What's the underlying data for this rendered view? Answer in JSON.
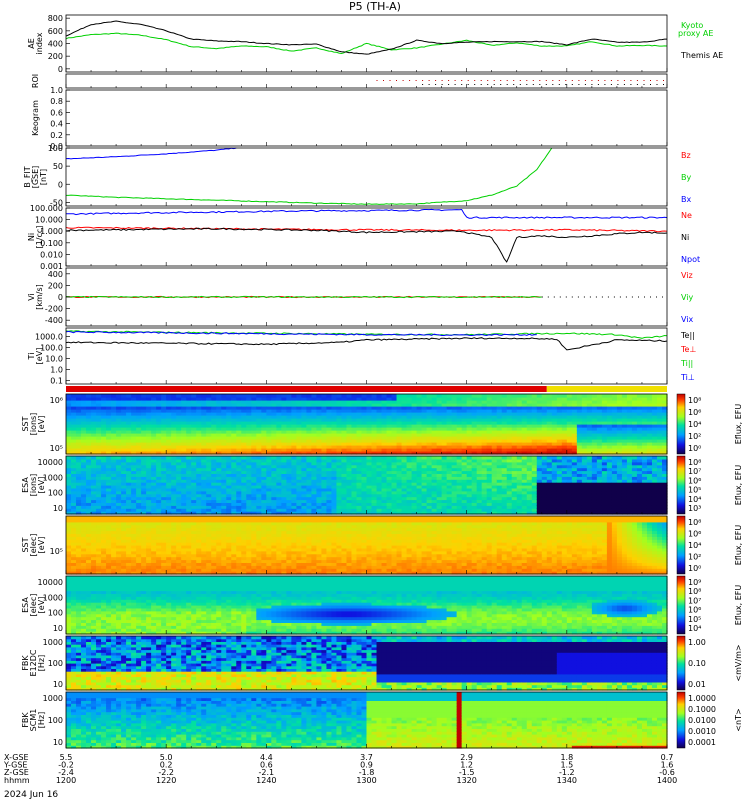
{
  "title": "P5 (TH-A)",
  "footer_date": "2024 Jun 16",
  "colors": {
    "red": "#ff0000",
    "green": "#00d000",
    "blue": "#0000ff",
    "black": "#000000"
  },
  "chart_data": {
    "type": "multi-panel",
    "x": {
      "label": "hhmm",
      "ticks": [
        "1200",
        "1220",
        "1240",
        "1300",
        "1320",
        "1340",
        "1400"
      ],
      "tick_minutes": [
        0,
        20,
        40,
        60,
        80,
        100,
        120
      ]
    },
    "position_rows": [
      {
        "label": "X-GSE",
        "values": [
          "5.5",
          "5.0",
          "4.4",
          "3.7",
          "2.9",
          "1.8",
          "0.7"
        ]
      },
      {
        "label": "Y-GSE",
        "values": [
          "-0.2",
          "0.2",
          "0.6",
          "0.9",
          "1.2",
          "1.5",
          "1.6"
        ]
      },
      {
        "label": "Z-GSE",
        "values": [
          "-2.4",
          "-2.2",
          "-2.1",
          "-1.8",
          "-1.5",
          "-1.2",
          "-0.6"
        ]
      }
    ],
    "panels": [
      {
        "id": "ae",
        "type": "line",
        "ylabel": "AE index",
        "yticks": [
          "800",
          "600",
          "400",
          "200",
          "0"
        ],
        "ylim": [
          -50,
          850
        ],
        "series": [
          {
            "name": "Kyoto proxy AE",
            "legend_line2": "proxy AE",
            "legend_line1": "Kyoto",
            "color": "green",
            "x": [
              0,
              5,
              10,
              15,
              20,
              25,
              30,
              35,
              40,
              45,
              50,
              55,
              60,
              65,
              70,
              75,
              80,
              85,
              90,
              95,
              100,
              105,
              110,
              115,
              120
            ],
            "y": [
              480,
              540,
              560,
              530,
              460,
              350,
              320,
              360,
              350,
              280,
              330,
              240,
              400,
              300,
              330,
              390,
              450,
              370,
              410,
              360,
              360,
              430,
              360,
              370,
              360
            ]
          },
          {
            "name": "Themis AE",
            "color": "black",
            "x": [
              0,
              5,
              10,
              15,
              20,
              25,
              30,
              35,
              40,
              45,
              50,
              55,
              60,
              65,
              70,
              75,
              80,
              85,
              90,
              95,
              100,
              105,
              110,
              115,
              120
            ],
            "y": [
              520,
              700,
              750,
              700,
              600,
              470,
              440,
              430,
              400,
              380,
              390,
              270,
              230,
              310,
              450,
              400,
              420,
              430,
              430,
              430,
              380,
              470,
              420,
              420,
              470
            ]
          }
        ]
      },
      {
        "id": "roi",
        "type": "dots",
        "ylabel": "ROI",
        "start_minute": 62
      },
      {
        "id": "keogram",
        "type": "empty",
        "ylabel": "Keogram",
        "yticks": [
          "1.0",
          "0.8",
          "0.6",
          "0.4",
          "0.2",
          "0.0"
        ],
        "ylim": [
          0,
          1
        ]
      },
      {
        "id": "bfit",
        "type": "line",
        "ylabel": "B_FIT [GSE] [nT]",
        "yticks": [
          "100",
          "50",
          "0",
          "-50"
        ],
        "ylim": [
          -60,
          100
        ],
        "legend": [
          "Bz",
          "By",
          "Bx"
        ],
        "legend_colors": [
          "red",
          "green",
          "blue"
        ],
        "series": [
          {
            "name": "Bx",
            "color": "blue",
            "x": [
              0,
              10,
              20,
              30,
              34
            ],
            "y": [
              70,
              76,
              84,
              94,
              100
            ]
          },
          {
            "name": "By",
            "color": "green",
            "x": [
              0,
              10,
              20,
              30,
              40,
              50,
              60,
              70,
              80,
              85,
              90,
              94,
              97
            ],
            "y": [
              -30,
              -36,
              -40,
              -44,
              -48,
              -52,
              -55,
              -54,
              -45,
              -30,
              -5,
              40,
              100
            ]
          }
        ]
      },
      {
        "id": "density",
        "type": "line",
        "scale": "log",
        "ylabel": "Ni [1/cc]",
        "yticks": [
          "100.000",
          "10.000",
          "1.000",
          "0.100",
          "0.010",
          "0.001"
        ],
        "ylim": [
          0.001,
          100
        ],
        "legend": [
          "Ne",
          "Ni",
          "Npot"
        ],
        "legend_colors": [
          "red",
          "black",
          "blue"
        ],
        "series": [
          {
            "name": "Npot",
            "color": "blue",
            "x": [
              0,
              15,
              30,
              45,
              60,
              70,
              79,
              80,
              120
            ],
            "y": [
              30,
              38,
              45,
              55,
              60,
              65,
              70,
              15,
              15
            ]
          },
          {
            "name": "Ne",
            "color": "red",
            "x": [
              0,
              20,
              40,
              60,
              80,
              100,
              120
            ],
            "y": [
              2,
              1.8,
              1.5,
              1.3,
              1.2,
              1.3,
              1.0
            ]
          },
          {
            "name": "Ni",
            "color": "black",
            "x": [
              0,
              10,
              20,
              30,
              40,
              50,
              60,
              70,
              79,
              82,
              85,
              88,
              90,
              95,
              100,
              105,
              110,
              115,
              120
            ],
            "y": [
              1.2,
              1.3,
              1.5,
              1.6,
              1.4,
              1.2,
              0.8,
              0.9,
              1.0,
              0.5,
              0.3,
              0.002,
              0.3,
              0.4,
              0.3,
              0.4,
              0.6,
              0.8,
              0.7
            ]
          }
        ]
      },
      {
        "id": "velocity",
        "type": "line",
        "ylabel": "Vi [km/s]",
        "yticks": [
          "400",
          "200",
          "0",
          "-200",
          "-400"
        ],
        "ylim": [
          -500,
          500
        ],
        "legend": [
          "Viz",
          "Viy",
          "Vix"
        ],
        "legend_colors": [
          "red",
          "green",
          "blue"
        ],
        "series": [
          {
            "name": "Viz",
            "color": "red",
            "x": [
              0,
              95
            ],
            "y": [
              0,
              0
            ]
          },
          {
            "name": "Viy",
            "color": "green",
            "x": [
              0,
              95
            ],
            "y": [
              0,
              0
            ]
          }
        ],
        "dotted_after_minute": 95
      },
      {
        "id": "temperature",
        "type": "line",
        "scale": "log",
        "ylabel": "Ti [eV]",
        "yticks": [
          "1000.0",
          "100.0",
          "10.0",
          "1.0",
          "0.1"
        ],
        "ylim": [
          0.05,
          6000
        ],
        "legend": [
          "Te||",
          "Te⊥",
          "Ti||",
          "Ti⊥"
        ],
        "legend_colors": [
          "black",
          "red",
          "green",
          "blue"
        ],
        "series": [
          {
            "name": "Ti||",
            "color": "green",
            "x": [
              0,
              20,
              40,
              60,
              80,
              100,
              110,
              115,
              120
            ],
            "y": [
              3000,
              2400,
              2000,
              1600,
              1500,
              2000,
              1500,
              700,
              1200
            ]
          },
          {
            "name": "Ti⊥",
            "color": "blue",
            "x": [
              0,
              20,
              40,
              60,
              80,
              94
            ],
            "y": [
              2600,
              2200,
              1800,
              1500,
              1400,
              1500
            ]
          },
          {
            "name": "Te||",
            "color": "black",
            "x": [
              0,
              20,
              40,
              55,
              60,
              80,
              90,
              98,
              100,
              110,
              120
            ],
            "y": [
              300,
              250,
              200,
              300,
              500,
              700,
              700,
              600,
              60,
              500,
              400
            ]
          }
        ]
      },
      {
        "id": "sst_ion",
        "type": "spectrogram",
        "ylabel": "SST [ions] [eV]",
        "ytick_labels": [
          "10⁶",
          "10⁵"
        ],
        "colorbar_label": "Eflux, EFU",
        "colorbar_ticks": [
          "10⁸",
          "10⁶",
          "10⁴",
          "10²",
          "10⁰"
        ]
      },
      {
        "id": "esa_ion",
        "type": "spectrogram",
        "ylabel": "ESA [ions] [eV]",
        "ytick_labels": [
          "10000",
          "1000",
          "100",
          "10"
        ],
        "colorbar_label": "Eflux, EFU",
        "colorbar_ticks": [
          "10⁸",
          "10⁷",
          "10⁶",
          "10⁵",
          "10⁴",
          "10³"
        ]
      },
      {
        "id": "sst_elec",
        "type": "spectrogram",
        "ylabel": "SST [elec] [eV]",
        "ytick_labels": [
          "10⁵"
        ],
        "colorbar_label": "Eflux, EFU",
        "colorbar_ticks": [
          "10⁸",
          "10⁶",
          "10⁴",
          "10²",
          "10⁰"
        ]
      },
      {
        "id": "esa_elec",
        "type": "spectrogram",
        "ylabel": "ESA [elec] [eV]",
        "ytick_labels": [
          "10000",
          "1000",
          "100",
          "10"
        ],
        "colorbar_label": "Eflux, EFU",
        "colorbar_ticks": [
          "10⁹",
          "10⁸",
          "10⁷",
          "10⁶",
          "10⁵",
          "10⁴"
        ]
      },
      {
        "id": "fbk_e",
        "type": "spectrogram",
        "ylabel": "FBK E12DC [Hz]",
        "ytick_labels": [
          "1000",
          "100",
          "10"
        ],
        "colorbar_label": "<mV/m>",
        "colorbar_ticks": [
          "1.00",
          "0.10",
          "0.01"
        ]
      },
      {
        "id": "fbk_b",
        "type": "spectrogram",
        "ylabel": "FBK SCM1 [Hz]",
        "ytick_labels": [
          "1000",
          "100",
          "10"
        ],
        "colorbar_label": "<nT>",
        "colorbar_ticks": [
          "1.0000",
          "0.1000",
          "0.0100",
          "0.0010",
          "0.0001"
        ]
      }
    ]
  }
}
